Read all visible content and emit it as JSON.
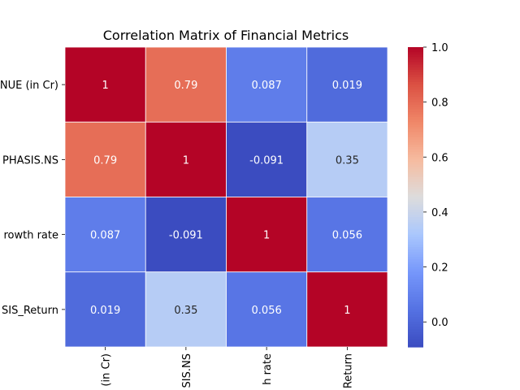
{
  "chart_data": {
    "type": "heatmap",
    "title": "Correlation Matrix of Financial Metrics",
    "row_labels": [
      "REVENUE (in Cr)",
      "MPHASIS.NS",
      "Growth rate",
      "MPHASIS_Return"
    ],
    "col_labels": [
      "REVENUE (in Cr)",
      "MPHASIS.NS",
      "Growth rate",
      "MPHASIS_Return"
    ],
    "row_labels_visible": [
      "NUE (in Cr)",
      "PHASIS.NS",
      "rowth rate",
      "SIS_Return"
    ],
    "col_labels_visible": [
      "(in Cr)",
      "SIS.NS",
      "h rate",
      "Return"
    ],
    "values": [
      [
        1,
        0.79,
        0.087,
        0.019
      ],
      [
        0.79,
        1,
        -0.091,
        0.35
      ],
      [
        0.087,
        -0.091,
        1,
        0.056
      ],
      [
        0.019,
        0.35,
        0.056,
        1
      ]
    ],
    "annotations": [
      [
        "1",
        "0.79",
        "0.087",
        "0.019"
      ],
      [
        "0.79",
        "1",
        "-0.091",
        "0.35"
      ],
      [
        "0.087",
        "-0.091",
        "1",
        "0.056"
      ],
      [
        "0.019",
        "0.35",
        "0.056",
        "1"
      ]
    ],
    "colormap": "coolwarm",
    "vmin": -0.091,
    "vmax": 1.0,
    "colorbar_ticks": [
      0.0,
      0.2,
      0.4,
      0.6,
      0.8,
      1.0
    ],
    "colorbar_tick_labels": [
      "0.0",
      "0.2",
      "0.4",
      "0.6",
      "0.8",
      "1.0"
    ],
    "grid_line_color": "#ffffff"
  }
}
